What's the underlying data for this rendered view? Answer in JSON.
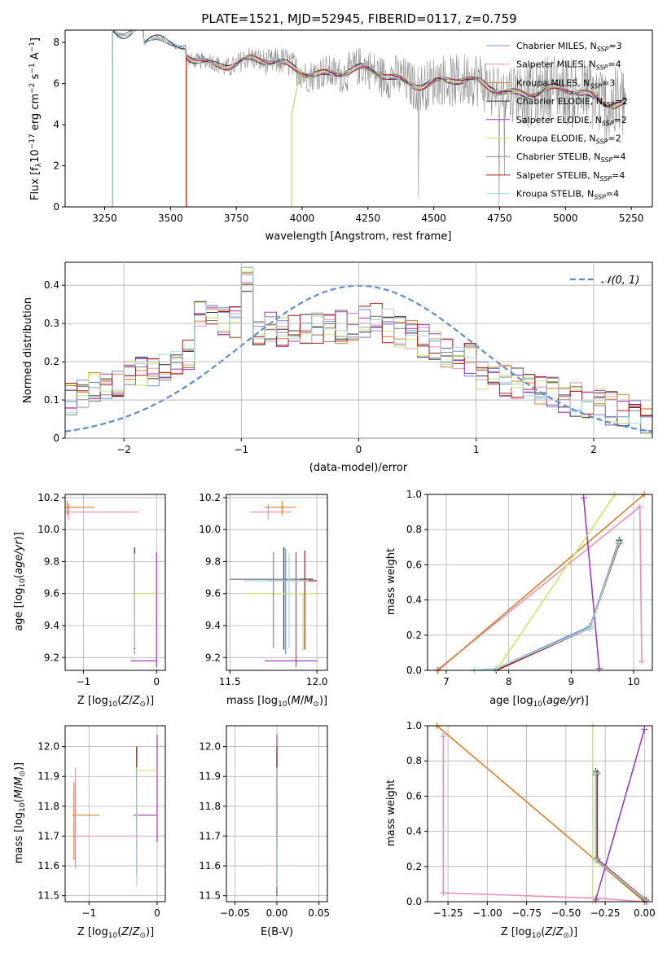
{
  "figure_title": "PLATE=1521, MJD=52945, FIBERID=0117, z=0.759",
  "model_colors": [
    "#6c8fdc",
    "#e88fba",
    "#d4802c",
    "#2e2e2e",
    "#9a3bb4",
    "#c8e86a",
    "#808080",
    "#b01c1c",
    "#a4d8dc"
  ],
  "models": [
    "Chabrier MILES",
    "Salpeter MILES",
    "Kroupa MILES",
    "Chabrier ELODIE",
    "Salpeter ELODIE",
    "Kroupa ELODIE",
    "Chabrier STELIB",
    "Salpeter STELIB",
    "Kroupa STELIB"
  ],
  "nssp": [
    3,
    4,
    3,
    2,
    2,
    2,
    4,
    4,
    4
  ],
  "legend_prefix": "N",
  "legend_sub": "SSP",
  "chart_data": [
    {
      "id": "spectrum",
      "type": "line",
      "xlabel": "wavelength [Angstrom, rest frame]",
      "ylabel": "Flux [f_λ 10^-17 erg cm^-2 s^-1 A^-1]",
      "xlim": [
        3100,
        5330
      ],
      "ylim": [
        0,
        8.6
      ],
      "xticks": [
        3250,
        3500,
        3750,
        4000,
        4250,
        4500,
        4750,
        5000,
        5250
      ],
      "yticks": [
        0,
        2,
        4,
        6,
        8
      ],
      "model_starts": [
        3280,
        3560,
        3560,
        3280,
        3960,
        3960,
        3280,
        3560,
        3280
      ],
      "legend": "top-right",
      "grid": false
    },
    {
      "id": "residuals",
      "type": "line",
      "xlabel": "(data-model)/error",
      "ylabel": "Normed distribution",
      "xlim": [
        -2.5,
        2.5
      ],
      "ylim": [
        0,
        0.46
      ],
      "xticks": [
        -2,
        -1,
        0,
        1,
        2
      ],
      "yticks": [
        0.0,
        0.1,
        0.2,
        0.3,
        0.4
      ],
      "normal_label": "N(0,1)",
      "legend": "top-right",
      "grid": true
    },
    {
      "id": "z-age",
      "type": "scatter",
      "xlabel": "Z [log10(Z/Z⊙)]",
      "ylabel": "age [log10(age/yr)]",
      "xlim": [
        -1.25,
        0.12
      ],
      "ylim": [
        9.12,
        10.22
      ],
      "xticks": [
        -1,
        0
      ],
      "yticks": [
        9.2,
        9.4,
        9.6,
        9.8,
        10.0,
        10.2
      ],
      "grid": true
    },
    {
      "id": "mass-age",
      "type": "scatter",
      "xlabel": "mass [log10(M/M⊙)]",
      "xlim": [
        11.48,
        12.06
      ],
      "ylim": [
        9.12,
        10.22
      ],
      "xticks": [
        11.5,
        12.0
      ],
      "yticks": [
        9.2,
        9.4,
        9.6,
        9.8,
        10.0,
        10.2
      ],
      "grid": true
    },
    {
      "id": "age-weight",
      "type": "line",
      "xlabel": "age [log10(age/yr)]",
      "ylabel": "mass weight",
      "xlim": [
        6.7,
        10.3
      ],
      "ylim": [
        0,
        1
      ],
      "xticks": [
        7,
        8,
        9,
        10
      ],
      "yticks": [
        0.0,
        0.2,
        0.4,
        0.6,
        0.8,
        1.0
      ],
      "grid": true
    },
    {
      "id": "z-mass",
      "type": "scatter",
      "xlabel": "Z [log10(Z/Z⊙)]",
      "ylabel": "mass [log10(M/M⊙)]",
      "xlim": [
        -1.35,
        0.12
      ],
      "ylim": [
        11.48,
        12.07
      ],
      "xticks": [
        -1,
        0
      ],
      "yticks": [
        11.5,
        11.6,
        11.7,
        11.8,
        11.9,
        12.0
      ],
      "grid": true
    },
    {
      "id": "ebv-mass",
      "type": "scatter",
      "xlabel": "E(B-V)",
      "xlim": [
        -0.06,
        0.06
      ],
      "ylim": [
        11.48,
        12.07
      ],
      "xticks": [
        -0.05,
        0.0,
        0.05
      ],
      "yticks": [
        11.5,
        11.6,
        11.7,
        11.8,
        11.9,
        12.0
      ],
      "grid": true
    },
    {
      "id": "z-weight",
      "type": "line",
      "xlabel": "Z [log10(Z/Z⊙)]",
      "ylabel": "mass weight",
      "xlim": [
        -1.38,
        0.05
      ],
      "ylim": [
        0,
        1
      ],
      "xticks": [
        -1.25,
        -1.0,
        -0.75,
        -0.5,
        -0.25,
        0.0
      ],
      "yticks": [
        0.0,
        0.2,
        0.4,
        0.6,
        0.8,
        1.0
      ],
      "grid": true
    }
  ],
  "param_points": [
    {
      "z": -0.3,
      "zlo": -0.3,
      "zhi": -0.3,
      "age": 9.69,
      "alo": 9.22,
      "ahi": 9.88,
      "m": 11.82,
      "mlo": 11.57,
      "mhi": 11.92
    },
    {
      "z": -1.2,
      "zlo": -1.25,
      "zhi": -0.25,
      "age": 10.11,
      "alo": 10.06,
      "ahi": 10.16,
      "m": 11.7,
      "mlo": 11.59,
      "mhi": 11.93
    },
    {
      "z": -1.22,
      "zlo": -1.25,
      "zhi": -0.85,
      "age": 10.14,
      "alo": 10.09,
      "ahi": 10.18,
      "m": 11.77,
      "mlo": 11.62,
      "mhi": 11.88
    },
    {
      "z": -0.3,
      "zlo": -0.3,
      "zhi": -0.3,
      "age": 9.69,
      "alo": 9.25,
      "ahi": 9.89,
      "m": 11.92,
      "mlo": 11.66,
      "mhi": 12.0
    },
    {
      "z": 0.0,
      "zlo": -0.35,
      "zhi": 0.0,
      "age": 9.18,
      "alo": 9.14,
      "ahi": 9.86,
      "m": 11.77,
      "mlo": 11.68,
      "mhi": 12.04
    },
    {
      "z": -0.3,
      "zlo": -0.33,
      "zhi": 0.0,
      "age": 9.6,
      "alo": 9.24,
      "ahi": 9.6,
      "m": 11.92,
      "mlo": 11.78,
      "mhi": 11.95
    },
    {
      "z": -0.3,
      "zlo": -0.3,
      "zhi": -0.3,
      "age": 9.69,
      "alo": 9.26,
      "ahi": 9.86,
      "m": 11.83,
      "mlo": 11.57,
      "mhi": 11.92
    },
    {
      "z": -0.3,
      "zlo": -0.3,
      "zhi": -0.3,
      "age": 9.68,
      "alo": 9.25,
      "ahi": 9.87,
      "m": 11.94,
      "mlo": 11.84,
      "mhi": 12.0
    },
    {
      "z": -0.3,
      "zlo": -0.3,
      "zhi": -0.3,
      "age": 9.68,
      "alo": 9.26,
      "ahi": 9.85,
      "m": 11.83,
      "mlo": 11.53,
      "mhi": 11.93
    }
  ],
  "mass_age_points": [
    {
      "m": 11.82,
      "mlo": 11.5,
      "mhi": 11.9,
      "age": 9.69
    },
    {
      "m": 11.72,
      "mlo": 11.62,
      "mhi": 11.85,
      "age": 10.11
    },
    {
      "m": 11.8,
      "mlo": 11.7,
      "mhi": 11.88,
      "age": 10.14
    },
    {
      "m": 11.81,
      "mlo": 11.5,
      "mhi": 11.98,
      "age": 9.69
    },
    {
      "m": 11.88,
      "mlo": 11.7,
      "mhi": 12.0,
      "age": 9.18
    },
    {
      "m": 11.92,
      "mlo": 11.6,
      "mhi": 12.0,
      "age": 9.6
    },
    {
      "m": 11.75,
      "mlo": 11.5,
      "mhi": 11.9,
      "age": 9.69
    },
    {
      "m": 11.93,
      "mlo": 11.72,
      "mhi": 12.0,
      "age": 9.68
    },
    {
      "m": 11.84,
      "mlo": 11.58,
      "mhi": 11.95,
      "age": 9.68
    }
  ],
  "age_weight_lines": [
    [
      [
        7.45,
        0.0
      ],
      [
        7.8,
        0.01
      ],
      [
        9.3,
        0.25
      ],
      [
        9.77,
        0.73
      ]
    ],
    [
      [
        6.85,
        0.0
      ],
      [
        10.1,
        0.93
      ],
      [
        10.13,
        0.05
      ]
    ],
    [
      [
        6.87,
        0.0
      ],
      [
        10.17,
        1.0
      ]
    ],
    [
      [
        7.8,
        0.0
      ],
      [
        9.3,
        0.24
      ],
      [
        9.77,
        0.74
      ]
    ],
    [
      [
        9.45,
        0.01
      ],
      [
        9.2,
        0.98
      ]
    ],
    [
      [
        7.8,
        0.0
      ],
      [
        9.7,
        1.0
      ]
    ],
    [
      [
        7.8,
        0.0
      ],
      [
        9.3,
        0.24
      ],
      [
        9.77,
        0.72
      ]
    ],
    [
      [
        7.8,
        0.0
      ],
      [
        9.3,
        0.24
      ],
      [
        9.78,
        0.73
      ]
    ],
    [
      [
        7.45,
        0.0
      ],
      [
        7.8,
        0.01
      ],
      [
        9.3,
        0.24
      ],
      [
        9.77,
        0.73
      ]
    ]
  ],
  "z_weight_lines": [
    [
      [
        -0.31,
        0.73
      ],
      [
        -0.31,
        0.25
      ],
      [
        0.01,
        0.0
      ]
    ],
    [
      [
        -1.28,
        0.94
      ],
      [
        -1.28,
        0.05
      ],
      [
        -0.31,
        0.02
      ],
      [
        0.0,
        0.0
      ]
    ],
    [
      [
        -1.32,
        1.0
      ],
      [
        0.0,
        0.0
      ]
    ],
    [
      [
        -0.31,
        0.74
      ],
      [
        -0.31,
        0.24
      ],
      [
        0.0,
        0.01
      ]
    ],
    [
      [
        -0.31,
        0.01
      ],
      [
        0.0,
        0.98
      ]
    ],
    [
      [
        -0.33,
        0.0
      ],
      [
        -0.33,
        1.0
      ]
    ],
    [
      [
        -0.31,
        0.72
      ],
      [
        -0.31,
        0.24
      ],
      [
        0.0,
        0.01
      ]
    ],
    [
      [
        -0.3,
        0.73
      ],
      [
        -0.3,
        0.24
      ],
      [
        0.01,
        0.01
      ]
    ],
    [
      [
        -0.31,
        0.73
      ],
      [
        -0.31,
        0.24
      ],
      [
        0.02,
        0.0
      ]
    ]
  ],
  "ebv_points": [
    {
      "mlo": 11.5,
      "mhi": 11.9
    },
    {
      "mlo": 11.62,
      "mhi": 11.88
    },
    {
      "mlo": 11.7,
      "mhi": 11.88
    },
    {
      "mlo": 11.5,
      "mhi": 11.98
    },
    {
      "mlo": 11.68,
      "mhi": 12.04
    },
    {
      "mlo": 11.72,
      "mhi": 12.0
    },
    {
      "mlo": 11.5,
      "mhi": 11.9
    },
    {
      "mlo": 11.72,
      "mhi": 12.0
    },
    {
      "mlo": 11.53,
      "mhi": 11.93
    }
  ]
}
